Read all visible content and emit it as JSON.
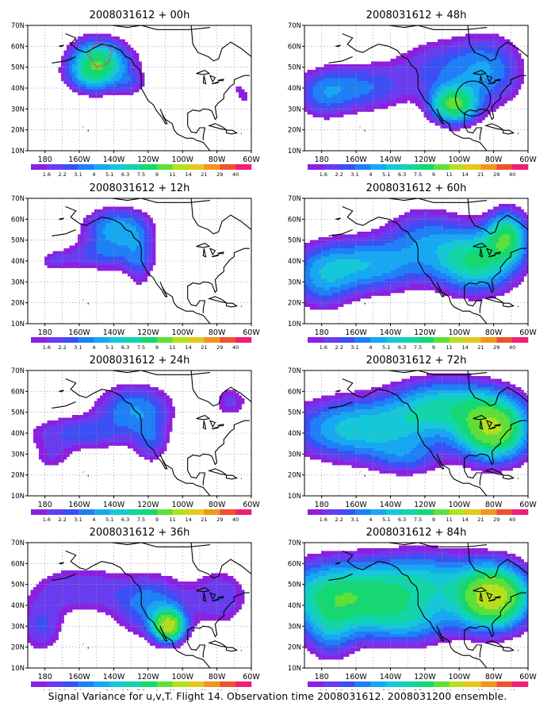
{
  "panels": [
    {
      "title": "2008031612 + 00h",
      "hours": 0
    },
    {
      "title": "2008031612 + 48h",
      "hours": 48
    },
    {
      "title": "2008031612 + 12h",
      "hours": 12
    },
    {
      "title": "2008031612 + 60h",
      "hours": 60
    },
    {
      "title": "2008031612 + 24h",
      "hours": 24
    },
    {
      "title": "2008031612 + 72h",
      "hours": 72
    },
    {
      "title": "2008031612 + 36h",
      "hours": 36
    },
    {
      "title": "2008031612 + 84h",
      "hours": 84
    }
  ],
  "lat_ticks": [
    "70N",
    "60N",
    "50N",
    "40N",
    "30N",
    "20N",
    "10N"
  ],
  "lon_ticks": [
    "180",
    "160W",
    "140W",
    "120W",
    "100W",
    "80W",
    "60W"
  ],
  "colorbar": {
    "labels": [
      "1.6",
      "2.2",
      "3.1",
      "4",
      "5.1",
      "6.3",
      "7.5",
      "9",
      "11",
      "14",
      "21",
      "29",
      "40"
    ],
    "colors": [
      "#8c1fe0",
      "#6a3cf0",
      "#3b4ff5",
      "#1e7ff7",
      "#16a8f2",
      "#14c8d8",
      "#10d6a8",
      "#14d870",
      "#5ee038",
      "#b4e01c",
      "#e6c81e",
      "#f0961e",
      "#f05032",
      "#f01e78"
    ]
  },
  "caption": "Signal Variance for u,v,T. Flight 14. Observation time 2008031612. 2008031200 ensemble."
}
